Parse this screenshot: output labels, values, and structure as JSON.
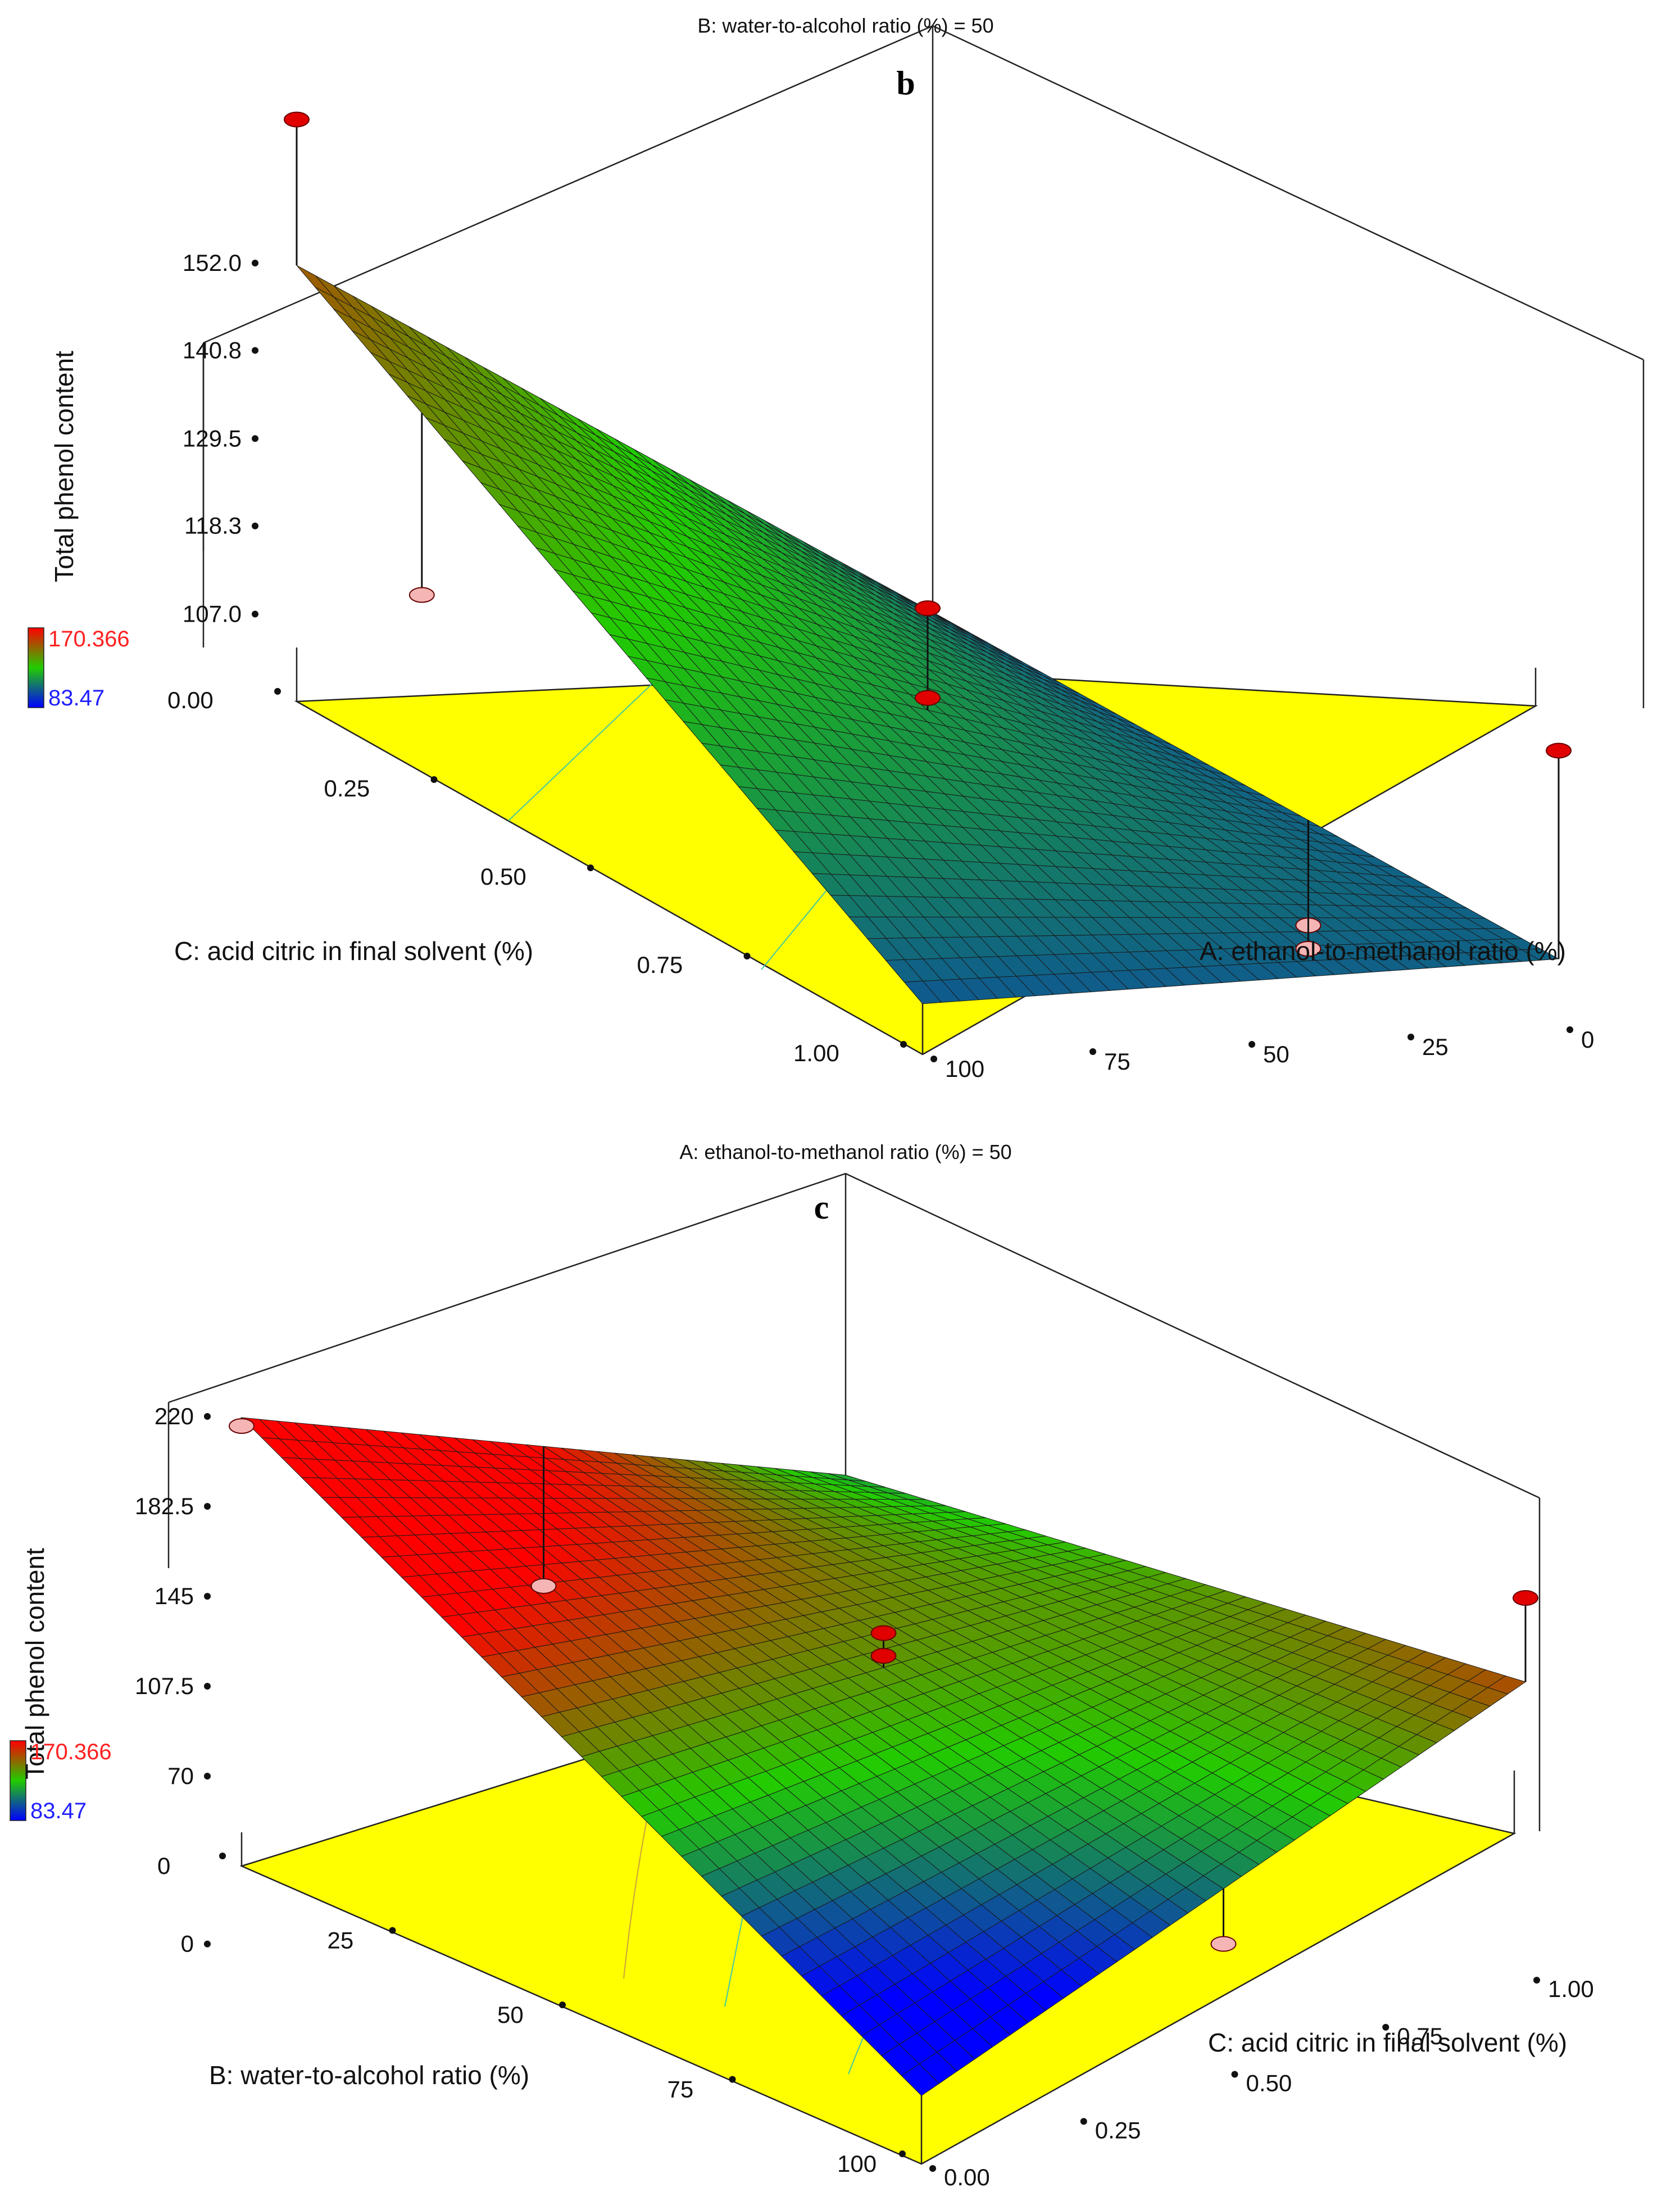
{
  "chart_data": [
    {
      "panel": "b",
      "type": "surface3d",
      "title": "B: water-to-alcohol ratio (%) = 50",
      "zlabel": "Total phenol content",
      "xlabel": "C: acid citric in final solvent (%)",
      "ylabel": "A: ethanol-to-methanol ratio (%)",
      "x_ticks": [
        "0.00",
        "0.25",
        "0.50",
        "0.75",
        "1.00"
      ],
      "y_ticks": [
        "0",
        "25",
        "50",
        "75",
        "100"
      ],
      "z_ticks": [
        "107.0",
        "118.3",
        "129.5",
        "140.8",
        "152.0"
      ],
      "zlim": [
        95.8,
        152.0
      ],
      "xlim": [
        0,
        1
      ],
      "ylim": [
        0,
        100
      ],
      "surface_corners": {
        "C0_A0": 103.5,
        "C0_A100": 151.7,
        "C1_A0": 104.3,
        "C1_A100": 102.3
      },
      "points": [
        {
          "C": 0.0,
          "A": 100,
          "value": 170.4
        },
        {
          "C": 1.0,
          "A": 0,
          "value": 131.0
        },
        {
          "C": 0.5,
          "A": 50,
          "value": 128.5
        },
        {
          "C": 0.5,
          "A": 50,
          "value": 117.0
        },
        {
          "C": 0.2,
          "A": 100,
          "value": 118.5
        },
        {
          "C": 0.6,
          "A": 0,
          "value": 90.5
        },
        {
          "C": 0.6,
          "A": 0,
          "value": 87.5
        }
      ],
      "legend": {
        "max": "170.366",
        "min": "83.47"
      },
      "colors": {
        "high": "#ff0000",
        "mid": "#22cc00",
        "low": "#0000ff",
        "floor": "#ffff00"
      }
    },
    {
      "panel": "c",
      "type": "surface3d",
      "title": "A: ethanol-to-methanol ratio (%) = 50",
      "zlabel": "Total phenol content",
      "xlabel": "B: water-to-alcohol ratio (%)",
      "ylabel": "C: acid citric in final solvent (%)",
      "x_ticks": [
        "0",
        "25",
        "50",
        "75",
        "100"
      ],
      "y_ticks": [
        "0.00",
        "0.25",
        "0.50",
        "0.75",
        "1.00"
      ],
      "z_ticks": [
        "0",
        "70",
        "107.5",
        "145",
        "182.5",
        "220"
      ],
      "zlim": [
        32.5,
        220
      ],
      "xlim": [
        0,
        100
      ],
      "ylim": [
        0,
        1
      ],
      "surface_corners": {
        "B0_C1": 117.0,
        "B0_C0": 219.5,
        "B100_C1": 155.0,
        "B100_C0": 61.0
      },
      "points": [
        {
          "B": 0,
          "C": 0.0,
          "value": 216.0
        },
        {
          "B": 100,
          "C": 1.0,
          "value": 190.0
        },
        {
          "B": 50,
          "C": 0.5,
          "value": 152.5
        },
        {
          "B": 50,
          "C": 0.5,
          "value": 143.0
        },
        {
          "B": 0,
          "C": 0.5,
          "value": 110.0
        },
        {
          "B": 100,
          "C": 0.5,
          "value": 85.0
        }
      ],
      "legend": {
        "max": "170.366",
        "min": "83.47"
      },
      "colors": {
        "high": "#ff0000",
        "mid": "#22cc00",
        "low": "#0000ff",
        "floor": "#ffff00"
      }
    }
  ]
}
